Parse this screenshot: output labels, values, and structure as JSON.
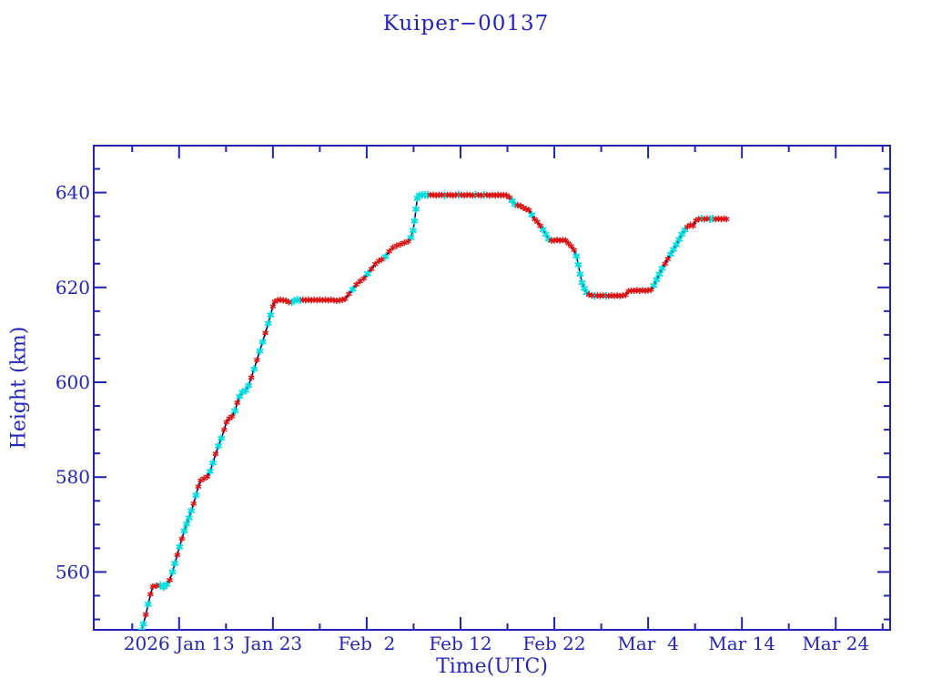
{
  "page": {
    "background": "#ffffff"
  },
  "chart_data": {
    "type": "line",
    "title": "Kuiper−00137",
    "xlabel": "Time(UTC)",
    "ylabel": "Height (km)",
    "grid": false,
    "legend": false,
    "colors": {
      "axis": "#2222b4",
      "text": "#2424bd",
      "line": "#000080",
      "marker_red": "#dc1414",
      "marker_cyan": "#00dede",
      "background": "#ffffff"
    },
    "x_axis": {
      "unit": "date UTC, day-of-year 2026 (day 13 = 2026 Jan 13)",
      "lim": [
        3.9,
        88.8
      ],
      "major_ticks": [
        {
          "t": 13,
          "label": "2026 Jan 13"
        },
        {
          "t": 23,
          "label": "Jan 23"
        },
        {
          "t": 33,
          "label": "Feb  2"
        },
        {
          "t": 43,
          "label": "Feb 12"
        },
        {
          "t": 53,
          "label": "Feb 22"
        },
        {
          "t": 63,
          "label": "Mar  4"
        },
        {
          "t": 73,
          "label": "Mar 14"
        },
        {
          "t": 83,
          "label": "Mar 24"
        }
      ],
      "minor_ticks": [
        8,
        18,
        28,
        38,
        48,
        58,
        68,
        78,
        88
      ]
    },
    "y_axis": {
      "unit": "km",
      "lim": [
        547.8,
        649.9
      ],
      "major_ticks": [
        560,
        580,
        600,
        620,
        640
      ],
      "minor_ticks": [
        550,
        555,
        565,
        570,
        575,
        585,
        590,
        595,
        605,
        610,
        615,
        625,
        630,
        635,
        645
      ]
    },
    "series_name": "satellite height, navy line with red and cyan asterisk markers",
    "points": [
      [
        9.0,
        547.6,
        "c"
      ],
      [
        9.2,
        549.0,
        "c"
      ],
      [
        9.45,
        551.0,
        "r"
      ],
      [
        9.7,
        553.2,
        "c"
      ],
      [
        9.95,
        555.3,
        "r"
      ],
      [
        10.2,
        556.9,
        "r"
      ],
      [
        10.6,
        557.1,
        "r"
      ],
      [
        11.0,
        557.2,
        "c"
      ],
      [
        11.35,
        556.8,
        "c"
      ],
      [
        11.7,
        557.4,
        "c"
      ],
      [
        12.0,
        558.3,
        "r"
      ],
      [
        12.3,
        560.0,
        "c"
      ],
      [
        12.55,
        561.8,
        "c"
      ],
      [
        12.8,
        563.6,
        "r"
      ],
      [
        13.05,
        565.3,
        "c"
      ],
      [
        13.3,
        567.0,
        "r"
      ],
      [
        13.55,
        568.7,
        "c"
      ],
      [
        13.8,
        570.1,
        "c"
      ],
      [
        14.05,
        571.4,
        "c"
      ],
      [
        14.3,
        572.9,
        "c"
      ],
      [
        14.55,
        574.4,
        "r"
      ],
      [
        14.8,
        576.2,
        "c"
      ],
      [
        15.05,
        578.0,
        "r"
      ],
      [
        15.3,
        579.3,
        "r"
      ],
      [
        15.65,
        579.7,
        "r"
      ],
      [
        16.0,
        580.1,
        "r"
      ],
      [
        16.3,
        581.2,
        "c"
      ],
      [
        16.6,
        583.0,
        "c"
      ],
      [
        16.9,
        584.9,
        "r"
      ],
      [
        17.2,
        586.6,
        "c"
      ],
      [
        17.5,
        588.2,
        "c"
      ],
      [
        17.8,
        590.0,
        "r"
      ],
      [
        18.05,
        591.6,
        "r"
      ],
      [
        18.35,
        592.4,
        "r"
      ],
      [
        18.65,
        592.8,
        "r"
      ],
      [
        18.95,
        594.0,
        "c"
      ],
      [
        19.2,
        595.7,
        "r"
      ],
      [
        19.45,
        597.0,
        "c"
      ],
      [
        19.75,
        597.9,
        "c"
      ],
      [
        20.1,
        598.3,
        "c"
      ],
      [
        20.4,
        599.3,
        "c"
      ],
      [
        20.7,
        601.0,
        "r"
      ],
      [
        21.0,
        602.8,
        "c"
      ],
      [
        21.3,
        604.7,
        "r"
      ],
      [
        21.6,
        606.6,
        "c"
      ],
      [
        21.9,
        608.5,
        "c"
      ],
      [
        22.2,
        610.4,
        "r"
      ],
      [
        22.5,
        612.4,
        "c"
      ],
      [
        22.75,
        614.2,
        "c"
      ],
      [
        23.0,
        616.0,
        "r"
      ],
      [
        23.2,
        617.0,
        "r"
      ],
      [
        23.5,
        617.3,
        "r"
      ],
      [
        23.8,
        617.4,
        "r"
      ],
      [
        24.1,
        617.3,
        "r"
      ],
      [
        24.4,
        617.2,
        "r"
      ],
      [
        24.7,
        616.9,
        "r"
      ],
      [
        25.0,
        616.9,
        "c"
      ],
      [
        25.3,
        617.2,
        "c"
      ],
      [
        25.6,
        617.4,
        "c"
      ],
      [
        25.9,
        617.3,
        "c"
      ],
      [
        26.2,
        617.4,
        "r"
      ],
      [
        26.5,
        617.3,
        "r"
      ],
      [
        26.8,
        617.4,
        "r"
      ],
      [
        27.1,
        617.3,
        "r"
      ],
      [
        27.4,
        617.4,
        "r"
      ],
      [
        27.7,
        617.3,
        "r"
      ],
      [
        28.0,
        617.4,
        "r"
      ],
      [
        28.3,
        617.3,
        "r"
      ],
      [
        28.6,
        617.4,
        "r"
      ],
      [
        28.9,
        617.3,
        "r"
      ],
      [
        29.2,
        617.4,
        "r"
      ],
      [
        29.5,
        617.3,
        "r"
      ],
      [
        29.8,
        617.2,
        "r"
      ],
      [
        30.1,
        617.3,
        "r"
      ],
      [
        30.4,
        617.4,
        "r"
      ],
      [
        30.7,
        617.6,
        "r"
      ],
      [
        31.1,
        618.6,
        "r"
      ],
      [
        31.5,
        619.6,
        "c"
      ],
      [
        31.9,
        620.6,
        "r"
      ],
      [
        32.3,
        621.3,
        "r"
      ],
      [
        32.7,
        621.9,
        "r"
      ],
      [
        33.1,
        622.9,
        "c"
      ],
      [
        33.5,
        623.9,
        "r"
      ],
      [
        33.9,
        624.9,
        "r"
      ],
      [
        34.3,
        625.6,
        "r"
      ],
      [
        34.6,
        625.9,
        "r"
      ],
      [
        35.0,
        626.5,
        "c"
      ],
      [
        35.4,
        627.6,
        "r"
      ],
      [
        35.8,
        628.4,
        "r"
      ],
      [
        36.2,
        628.8,
        "r"
      ],
      [
        36.6,
        629.1,
        "r"
      ],
      [
        37.0,
        629.4,
        "r"
      ],
      [
        37.4,
        629.7,
        "r"
      ],
      [
        37.7,
        630.5,
        "c"
      ],
      [
        37.95,
        632.0,
        "c"
      ],
      [
        38.1,
        634.0,
        "c"
      ],
      [
        38.25,
        636.5,
        "c"
      ],
      [
        38.4,
        638.8,
        "c"
      ],
      [
        38.6,
        639.4,
        "c"
      ],
      [
        38.9,
        639.5,
        "c"
      ],
      [
        39.2,
        639.5,
        "c"
      ],
      [
        39.5,
        639.5,
        "c"
      ],
      [
        39.8,
        639.5,
        "r"
      ],
      [
        40.1,
        639.5,
        "r"
      ],
      [
        40.4,
        639.4,
        "r"
      ],
      [
        40.7,
        639.5,
        "r"
      ],
      [
        41.0,
        639.5,
        "r"
      ],
      [
        41.3,
        639.4,
        "c"
      ],
      [
        41.6,
        639.5,
        "r"
      ],
      [
        41.9,
        639.5,
        "r"
      ],
      [
        42.2,
        639.4,
        "r"
      ],
      [
        42.5,
        639.5,
        "r"
      ],
      [
        42.8,
        639.5,
        "c"
      ],
      [
        43.1,
        639.5,
        "r"
      ],
      [
        43.4,
        639.4,
        "r"
      ],
      [
        43.7,
        639.5,
        "r"
      ],
      [
        44.0,
        639.5,
        "r"
      ],
      [
        44.3,
        639.4,
        "r"
      ],
      [
        44.6,
        639.5,
        "c"
      ],
      [
        44.9,
        639.5,
        "r"
      ],
      [
        45.2,
        639.4,
        "r"
      ],
      [
        45.5,
        639.5,
        "c"
      ],
      [
        45.8,
        639.5,
        "r"
      ],
      [
        46.1,
        639.4,
        "r"
      ],
      [
        46.4,
        639.5,
        "r"
      ],
      [
        46.7,
        639.4,
        "r"
      ],
      [
        47.0,
        639.5,
        "r"
      ],
      [
        47.3,
        639.4,
        "r"
      ],
      [
        47.6,
        639.5,
        "r"
      ],
      [
        47.9,
        639.4,
        "r"
      ],
      [
        48.2,
        639.0,
        "r"
      ],
      [
        48.5,
        638.3,
        "c"
      ],
      [
        48.8,
        637.5,
        "c"
      ],
      [
        49.1,
        637.3,
        "r"
      ],
      [
        49.4,
        637.2,
        "r"
      ],
      [
        49.7,
        636.8,
        "r"
      ],
      [
        50.0,
        636.5,
        "r"
      ],
      [
        50.3,
        636.3,
        "r"
      ],
      [
        50.6,
        635.3,
        "c"
      ],
      [
        50.9,
        634.4,
        "r"
      ],
      [
        51.2,
        633.8,
        "r"
      ],
      [
        51.5,
        633.0,
        "r"
      ],
      [
        51.8,
        632.2,
        "c"
      ],
      [
        52.1,
        631.2,
        "c"
      ],
      [
        52.4,
        630.2,
        "c"
      ],
      [
        52.7,
        629.9,
        "r"
      ],
      [
        53.0,
        629.9,
        "r"
      ],
      [
        53.3,
        630.0,
        "r"
      ],
      [
        53.6,
        629.9,
        "r"
      ],
      [
        53.9,
        630.0,
        "r"
      ],
      [
        54.2,
        629.9,
        "r"
      ],
      [
        54.5,
        629.3,
        "r"
      ],
      [
        54.8,
        628.7,
        "r"
      ],
      [
        55.1,
        627.9,
        "r"
      ],
      [
        55.35,
        626.6,
        "c"
      ],
      [
        55.55,
        624.8,
        "c"
      ],
      [
        55.75,
        622.8,
        "c"
      ],
      [
        55.95,
        621.0,
        "c"
      ],
      [
        56.2,
        619.8,
        "c"
      ],
      [
        56.45,
        618.9,
        "c"
      ],
      [
        56.7,
        618.5,
        "r"
      ],
      [
        57.0,
        618.3,
        "r"
      ],
      [
        57.3,
        618.2,
        "c"
      ],
      [
        57.6,
        618.3,
        "r"
      ],
      [
        57.9,
        618.2,
        "r"
      ],
      [
        58.2,
        618.3,
        "r"
      ],
      [
        58.5,
        618.2,
        "c"
      ],
      [
        58.8,
        618.2,
        "r"
      ],
      [
        59.1,
        618.3,
        "r"
      ],
      [
        59.4,
        618.2,
        "r"
      ],
      [
        59.7,
        618.3,
        "r"
      ],
      [
        60.0,
        618.2,
        "r"
      ],
      [
        60.3,
        618.3,
        "r"
      ],
      [
        60.6,
        618.4,
        "r"
      ],
      [
        60.9,
        619.2,
        "r"
      ],
      [
        61.2,
        619.3,
        "r"
      ],
      [
        61.5,
        619.3,
        "r"
      ],
      [
        61.8,
        619.4,
        "r"
      ],
      [
        62.1,
        619.3,
        "r"
      ],
      [
        62.4,
        619.4,
        "r"
      ],
      [
        62.7,
        619.3,
        "r"
      ],
      [
        63.0,
        619.4,
        "r"
      ],
      [
        63.3,
        619.5,
        "r"
      ],
      [
        63.6,
        620.4,
        "c"
      ],
      [
        63.9,
        621.6,
        "c"
      ],
      [
        64.2,
        622.8,
        "c"
      ],
      [
        64.5,
        624.0,
        "c"
      ],
      [
        64.8,
        625.0,
        "r"
      ],
      [
        65.1,
        626.0,
        "r"
      ],
      [
        65.4,
        627.0,
        "c"
      ],
      [
        65.7,
        628.0,
        "c"
      ],
      [
        66.0,
        629.0,
        "c"
      ],
      [
        66.3,
        630.1,
        "c"
      ],
      [
        66.6,
        631.2,
        "c"
      ],
      [
        66.9,
        632.1,
        "c"
      ],
      [
        67.2,
        632.8,
        "r"
      ],
      [
        67.5,
        633.2,
        "r"
      ],
      [
        67.8,
        633.0,
        "r"
      ],
      [
        68.1,
        634.1,
        "r"
      ],
      [
        68.4,
        634.4,
        "r"
      ],
      [
        68.7,
        634.5,
        "c"
      ],
      [
        69.0,
        634.4,
        "r"
      ],
      [
        69.3,
        634.5,
        "r"
      ],
      [
        69.6,
        634.4,
        "c"
      ],
      [
        69.9,
        634.5,
        "c"
      ],
      [
        70.2,
        634.4,
        "r"
      ],
      [
        70.5,
        634.5,
        "r"
      ],
      [
        70.8,
        634.4,
        "r"
      ],
      [
        71.1,
        634.5,
        "r"
      ],
      [
        71.35,
        634.4,
        "r"
      ]
    ]
  }
}
